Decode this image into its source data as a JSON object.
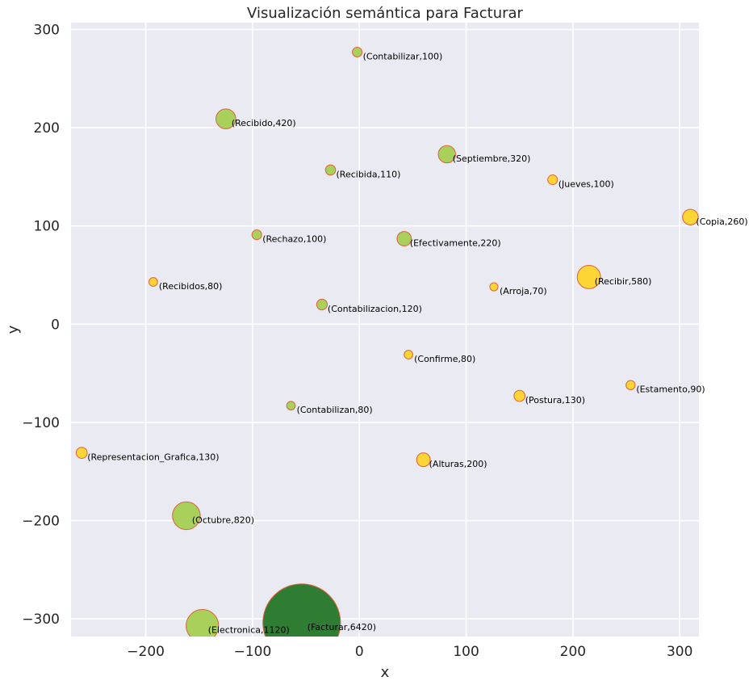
{
  "chart_data": {
    "type": "scatter",
    "title": "Visualización semántica para Facturar",
    "xlabel": "x",
    "ylabel": "y",
    "xlim": [
      -270,
      318
    ],
    "ylim": [
      -318,
      307
    ],
    "xticks": [
      -200,
      -100,
      0,
      100,
      200,
      300
    ],
    "yticks": [
      -300,
      -200,
      -100,
      0,
      100,
      200,
      300
    ],
    "grid": true,
    "background": "#eaeaf2",
    "colors": {
      "green": "#a8d05a",
      "yellow": "#fdd535",
      "dark_green": "#2e7d32",
      "edge": "#e0603a"
    },
    "points": [
      {
        "x": -2,
        "y": 277,
        "label": "(Contabilizar,100)",
        "freq": 100,
        "color": "green"
      },
      {
        "x": -125,
        "y": 209,
        "label": "(Recibido,420)",
        "freq": 420,
        "color": "green"
      },
      {
        "x": 82,
        "y": 173,
        "label": "(Septiembre,320)",
        "freq": 320,
        "color": "green"
      },
      {
        "x": -27,
        "y": 157,
        "label": "(Recibida,110)",
        "freq": 110,
        "color": "green"
      },
      {
        "x": 181,
        "y": 147,
        "label": "(Jueves,100)",
        "freq": 100,
        "color": "yellow"
      },
      {
        "x": 310,
        "y": 109,
        "label": "(Copia,260)",
        "freq": 260,
        "color": "yellow"
      },
      {
        "x": -96,
        "y": 91,
        "label": "(Rechazo,100)",
        "freq": 100,
        "color": "green"
      },
      {
        "x": 42,
        "y": 87,
        "label": "(Efectivamente,220)",
        "freq": 220,
        "color": "green"
      },
      {
        "x": -193,
        "y": 43,
        "label": "(Recibidos,80)",
        "freq": 80,
        "color": "yellow"
      },
      {
        "x": 215,
        "y": 48,
        "label": "(Recibir,580)",
        "freq": 580,
        "color": "yellow"
      },
      {
        "x": 126,
        "y": 38,
        "label": "(Arroja,70)",
        "freq": 70,
        "color": "yellow"
      },
      {
        "x": -35,
        "y": 20,
        "label": "(Contabilizacion,120)",
        "freq": 120,
        "color": "green"
      },
      {
        "x": 46,
        "y": -31,
        "label": "(Confirme,80)",
        "freq": 80,
        "color": "yellow"
      },
      {
        "x": 254,
        "y": -62,
        "label": "(Estamento,90)",
        "freq": 90,
        "color": "yellow"
      },
      {
        "x": 150,
        "y": -73,
        "label": "(Postura,130)",
        "freq": 130,
        "color": "yellow"
      },
      {
        "x": -64,
        "y": -83,
        "label": "(Contabilizan,80)",
        "freq": 80,
        "color": "green"
      },
      {
        "x": -260,
        "y": -131,
        "label": "(Representacion_Grafica,130)",
        "freq": 130,
        "color": "yellow"
      },
      {
        "x": 60,
        "y": -138,
        "label": "(Alturas,200)",
        "freq": 200,
        "color": "yellow"
      },
      {
        "x": -162,
        "y": -195,
        "label": "(Octubre,820)",
        "freq": 820,
        "color": "green"
      },
      {
        "x": -147,
        "y": -307,
        "label": "(Electronica,1120)",
        "freq": 1120,
        "color": "green"
      },
      {
        "x": -54,
        "y": -304,
        "label": "(Facturar,6420)",
        "freq": 6420,
        "color": "dark_green"
      }
    ]
  }
}
